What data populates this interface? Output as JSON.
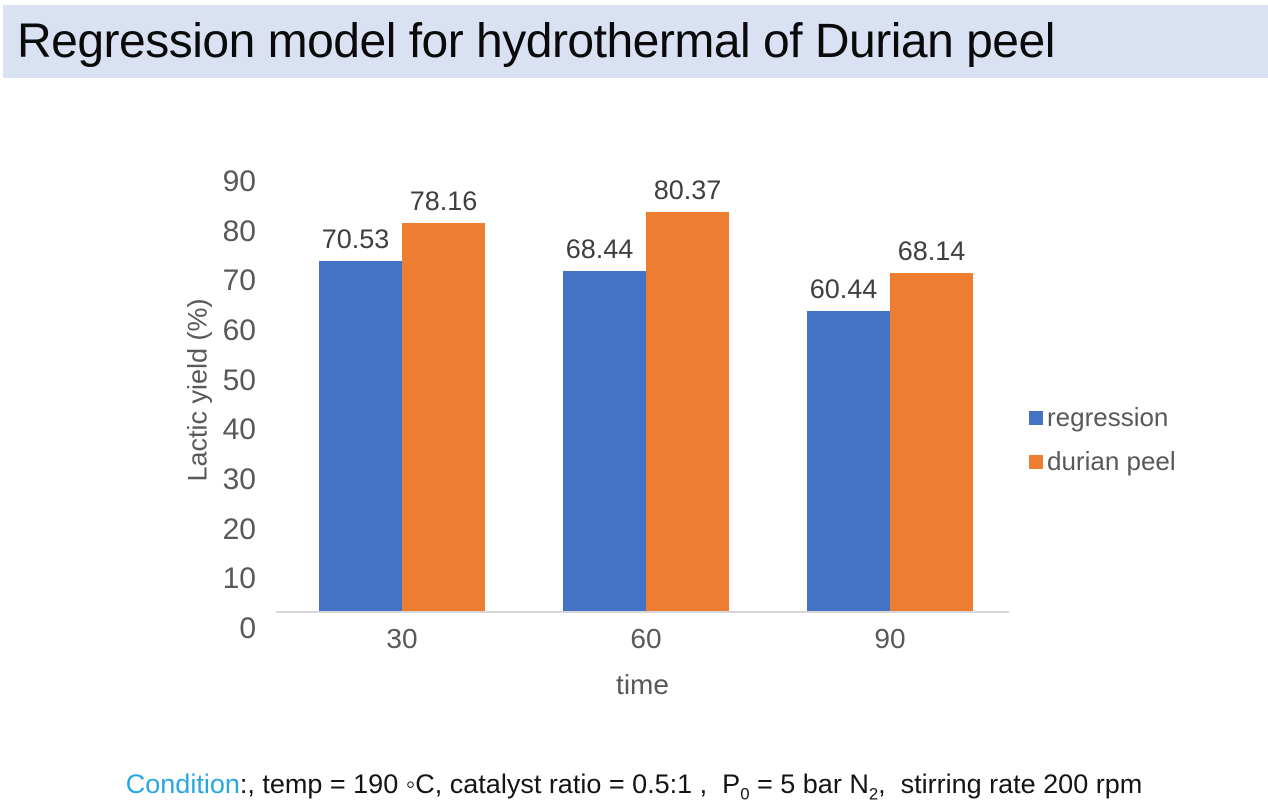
{
  "header": {
    "title": "Regression model for hydrothermal of Durian peel"
  },
  "chart_data": {
    "type": "bar",
    "title": "",
    "categories": [
      "30",
      "60",
      "90"
    ],
    "series": [
      {
        "name": "regression",
        "color": "#4472C4",
        "values": [
          70.53,
          68.44,
          60.44
        ]
      },
      {
        "name": "durian peel",
        "color": "#ED7D31",
        "values": [
          78.16,
          80.37,
          68.14
        ]
      }
    ],
    "xlabel": "time",
    "ylabel": "Lactic yield (%)",
    "ylim": [
      0,
      90
    ],
    "yticks": [
      0,
      10,
      20,
      30,
      40,
      50,
      60,
      70,
      80,
      90
    ],
    "grid": false,
    "legend_position": "right",
    "data_labels": true,
    "value_decimals": 2
  },
  "condition": {
    "prefix": "Condition",
    "seg1": ":, temp = 190 ◦C, catalyst ratio = 0.5:1 ,  P",
    "sub1": "0",
    "seg2": " = 5 bar N",
    "sub2": "2",
    "seg3": ",  stirring rate 200 rpm"
  },
  "colors": {
    "banner_bg": "#D9E1F2",
    "series_blue": "#4472C4",
    "series_orange": "#ED7D31",
    "condition_cyan": "#29A8E0",
    "axis_text": "#595959",
    "data_label_text": "#3F3F3F",
    "axis_line": "#D6D6D6"
  }
}
